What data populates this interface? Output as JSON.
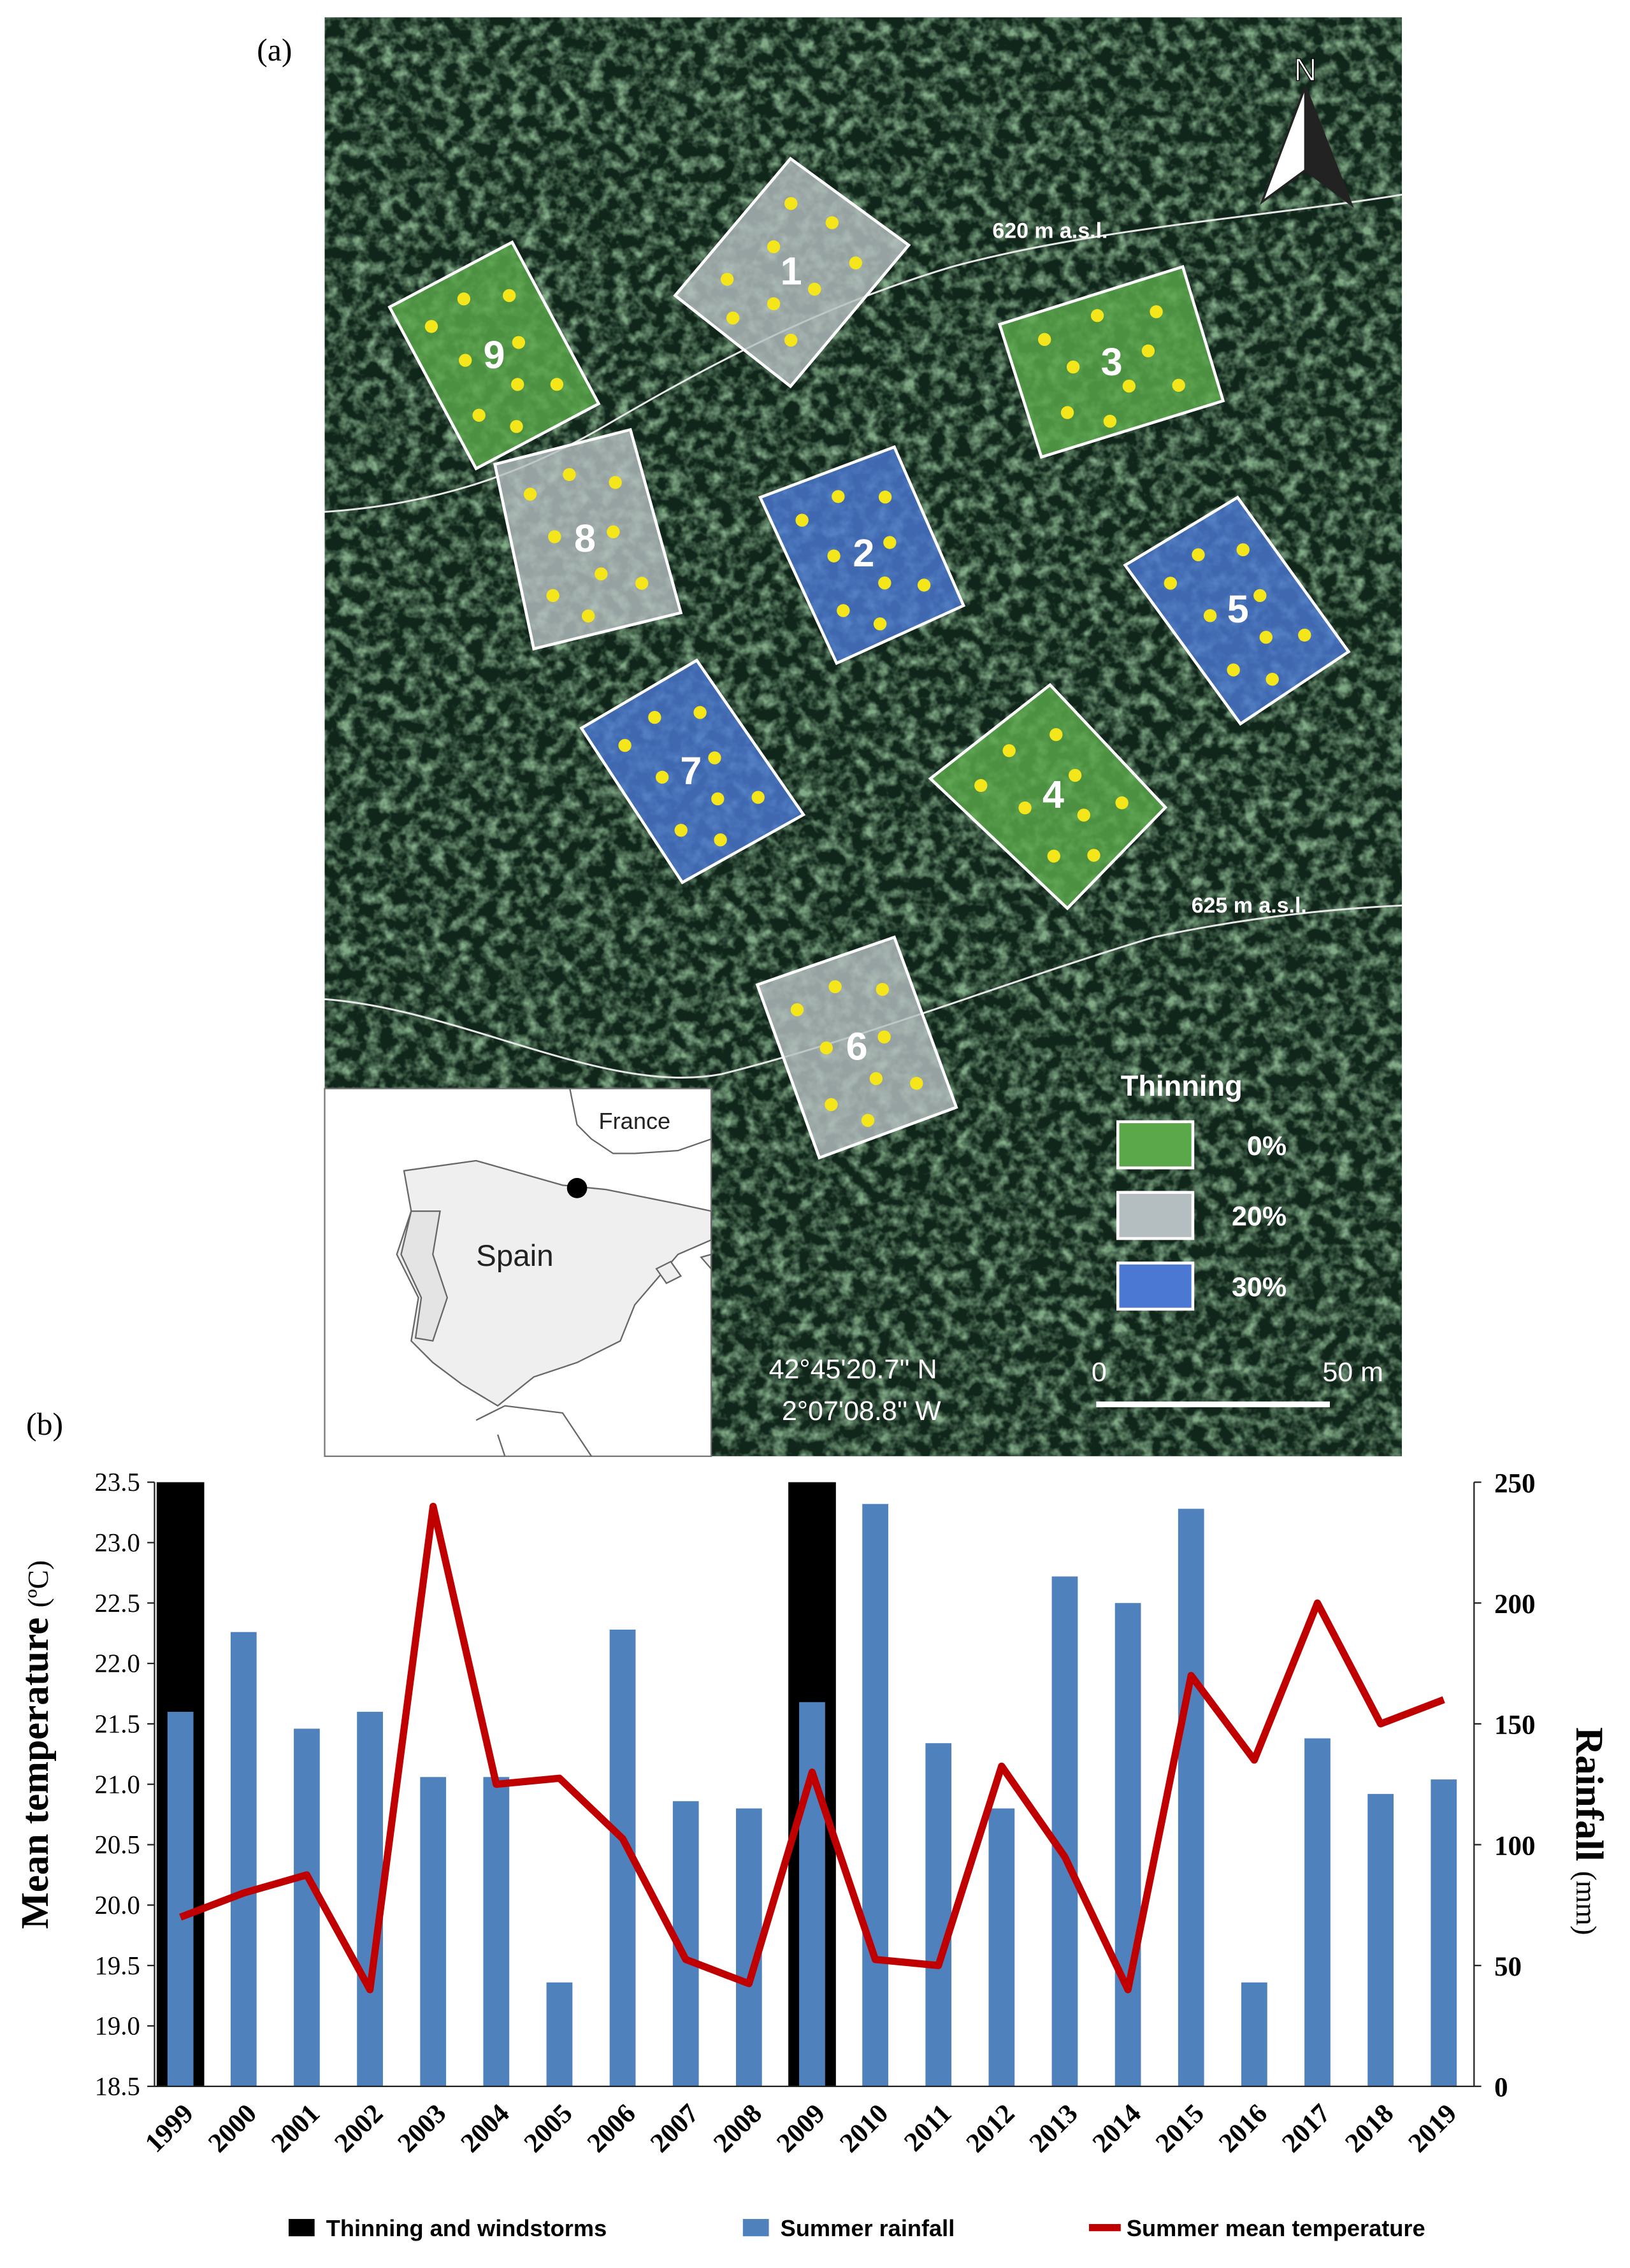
{
  "panel_a": {
    "label": "(a)",
    "north": "N",
    "contours": [
      "620 m a.s.l.",
      "625 m a.s.l."
    ],
    "plots": [
      "1",
      "2",
      "3",
      "4",
      "5",
      "6",
      "7",
      "8",
      "9"
    ],
    "legend_title": "Thinning",
    "legend": [
      {
        "label": "0%",
        "color": "#5aa84a"
      },
      {
        "label": "20%",
        "color": "#b4bec0"
      },
      {
        "label": "30%",
        "color": "#4a78d2"
      }
    ],
    "inset": {
      "country_top": "France",
      "country": "Spain"
    },
    "coordinates": [
      "42°45'20.7'' N",
      "2°07'08.8'' W"
    ],
    "scale": [
      "0",
      "50 m"
    ]
  },
  "chart_data": {
    "type": "bar",
    "label": "(b)",
    "y_label": "Mean temperature",
    "y_label_unit": "(ºC)",
    "y2_label": "Rainfall",
    "y2_label_unit": "(mm)",
    "categories": [
      "1999",
      "2000",
      "2001",
      "2002",
      "2003",
      "2004",
      "2005",
      "2006",
      "2007",
      "2008",
      "2009",
      "2010",
      "2011",
      "2012",
      "2013",
      "2014",
      "2015",
      "2016",
      "2017",
      "2018",
      "2019"
    ],
    "series": [
      {
        "name": "Thinning and windstorms",
        "type": "bar",
        "axis": "y2",
        "color": "#000000",
        "values": [
          250,
          null,
          null,
          null,
          null,
          null,
          null,
          null,
          null,
          null,
          250,
          null,
          null,
          null,
          null,
          null,
          null,
          null,
          null,
          null,
          null
        ]
      },
      {
        "name": "Summer rainfall",
        "type": "bar",
        "axis": "y2",
        "color": "#4f81bd",
        "values": [
          155,
          188,
          148,
          155,
          128,
          128,
          43,
          189,
          118,
          115,
          159,
          241,
          142,
          115,
          211,
          200,
          239,
          43,
          144,
          121,
          127
        ]
      },
      {
        "name": "Summer mean temperature",
        "type": "line",
        "color": "#c00000",
        "values": [
          19.9,
          20.1,
          20.25,
          19.3,
          23.3,
          21.0,
          21.05,
          20.55,
          19.55,
          19.35,
          21.1,
          19.55,
          19.5,
          21.15,
          20.4,
          19.3,
          21.9,
          21.2,
          22.5,
          21.5,
          21.7
        ]
      }
    ],
    "ylim": [
      18.5,
      23.5
    ],
    "yticks": [
      18.5,
      {
        "value": 19,
        "label": "19.0"
      },
      19.5,
      {
        "value": 20,
        "label": "20.0"
      },
      20.5,
      {
        "value": 21,
        "label": "21.0"
      },
      21.5,
      {
        "value": 22,
        "label": "22.0"
      },
      22.5,
      {
        "value": 23,
        "label": "23.0"
      },
      23.5
    ],
    "y2lim": [
      0,
      250
    ],
    "y2ticks": [
      0,
      50,
      100,
      150,
      200,
      250
    ],
    "grid": false,
    "legend": "bottom"
  }
}
